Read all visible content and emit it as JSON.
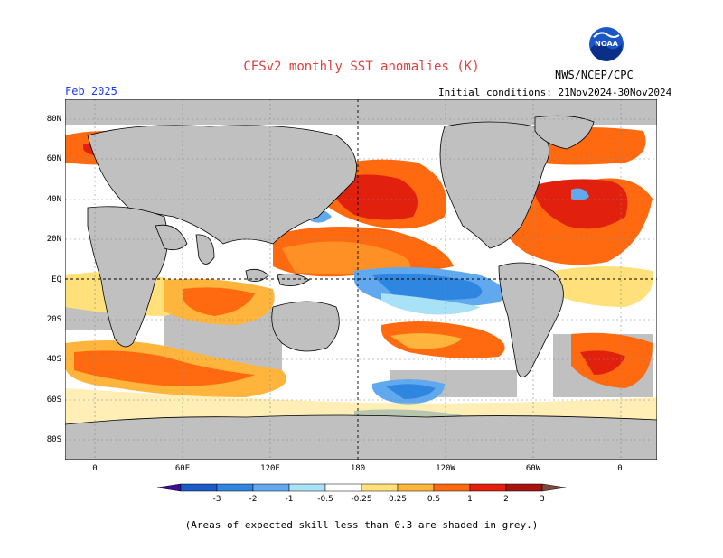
{
  "title": "CFSv2 monthly SST anomalies (K)",
  "agency": "NWS/NCEP/CPC",
  "logo": {
    "icon": "noaa-logo",
    "text": "NOAA"
  },
  "target_month": "Feb 2025",
  "initial_conditions": "Initial conditions: 21Nov2024-30Nov2024",
  "latitude_labels": [
    "80N",
    "60N",
    "40N",
    "20N",
    "EQ",
    "20S",
    "40S",
    "60S",
    "80S"
  ],
  "longitude_labels": [
    "0",
    "60E",
    "120E",
    "180",
    "120W",
    "60W",
    "0"
  ],
  "colorbar": {
    "tick_labels": [
      "-3",
      "-2",
      "-1",
      "-0.5",
      "-0.25",
      "0.25",
      "0.5",
      "1",
      "2",
      "3"
    ],
    "colors": [
      "#3b0f9a",
      "#1b5bc7",
      "#2f86e0",
      "#61a9ef",
      "#a9e1f7",
      "#ffffff",
      "#ffe07a",
      "#ffb53c",
      "#ff6a10",
      "#e2200e",
      "#a8130f",
      "#7e4b3a"
    ],
    "land_color": "#c0c0c0",
    "ocean_grey_color": "#c0c0c0"
  },
  "footnote": "(Areas of expected skill less than 0.3 are shaded in grey.)"
}
